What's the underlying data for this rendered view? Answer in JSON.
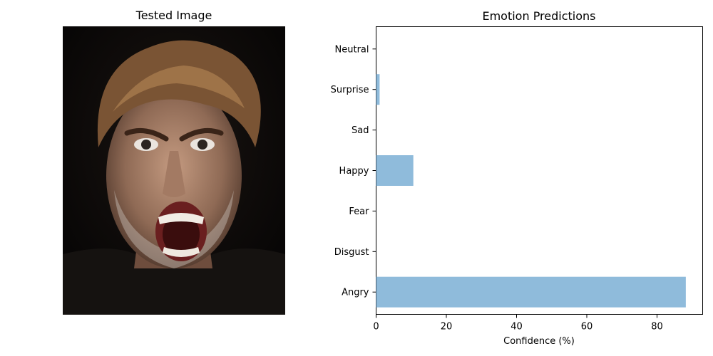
{
  "image_panel": {
    "title": "Tested Image"
  },
  "chart_data": {
    "type": "bar",
    "orientation": "horizontal",
    "title": "Emotion Predictions",
    "xlabel": "Confidence (%)",
    "ylabel": "",
    "categories": [
      "Angry",
      "Disgust",
      "Fear",
      "Happy",
      "Sad",
      "Surprise",
      "Neutral"
    ],
    "values": [
      88.2,
      0.0,
      0.0,
      10.6,
      0.0,
      1.0,
      0.0
    ],
    "xlim": [
      0,
      93
    ],
    "xticks": [
      "0",
      "20",
      "40",
      "60",
      "80"
    ],
    "grid": false,
    "bar_color": "#8fbbdb"
  }
}
